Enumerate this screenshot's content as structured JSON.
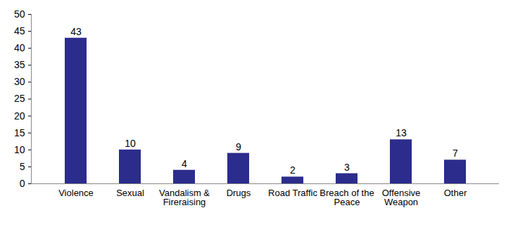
{
  "chart_data": {
    "type": "bar",
    "categories": [
      "Violence",
      "Sexual",
      "Vandalism & Fireraising",
      "Drugs",
      "Road Traffic",
      "Breach of the Peace",
      "Offensive Weapon",
      "Other"
    ],
    "values": [
      43,
      10,
      4,
      9,
      2,
      3,
      13,
      7
    ],
    "color": "#2b2c8c",
    "ylim": [
      0,
      50
    ],
    "yticks": [
      0,
      5,
      10,
      15,
      20,
      25,
      30,
      35,
      40,
      45,
      50
    ],
    "grid": false,
    "data_labels": true
  }
}
